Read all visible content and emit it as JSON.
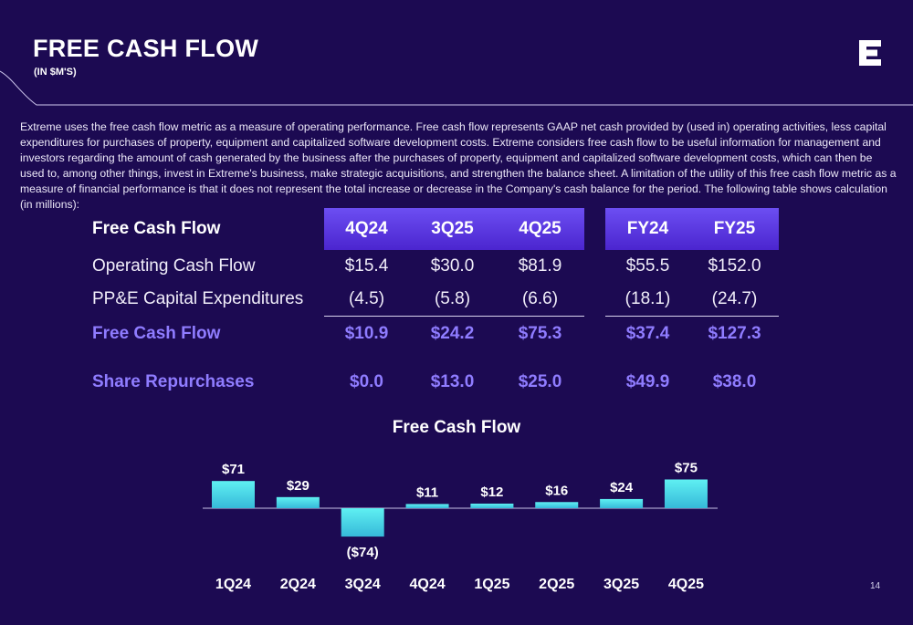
{
  "header": {
    "title": "FREE CASH FLOW",
    "subtitle": "(IN $M'S)",
    "logo_icon": "extreme-e-logo"
  },
  "description": "Extreme uses the free cash flow metric as a measure of operating performance. Free cash flow represents GAAP net cash provided by (used in) operating activities, less capital expenditures for purchases of property, equipment and capitalized software development costs.  Extreme considers free cash flow to be useful information for management and investors regarding the amount of cash generated by the business after the purchases of property, equipment and capitalized software development costs, which can then be used to, among other things, invest in Extreme's business, make strategic acquisitions, and strengthen the balance sheet. A limitation of the utility of this free cash flow metric as a measure of financial performance is that it does not represent the total increase or decrease in the Company's cash balance for the period. The following table shows calculation (in millions):",
  "table": {
    "header_label": "Free Cash Flow",
    "columns": [
      "4Q24",
      "3Q25",
      "4Q25",
      "FY24",
      "FY25"
    ],
    "rows": [
      {
        "label": "Operating Cash Flow",
        "values": [
          "$15.4",
          "$30.0",
          "$81.9",
          "$55.5",
          "$152.0"
        ]
      },
      {
        "label": "PP&E Capital Expenditures",
        "values": [
          "(4.5)",
          "(5.8)",
          "(6.6)",
          "(18.1)",
          "(24.7)"
        ]
      },
      {
        "label": "Free Cash Flow",
        "values": [
          "$10.9",
          "$24.2",
          "$75.3",
          "$37.4",
          "$127.3"
        ]
      },
      {
        "label": "Share Repurchases",
        "values": [
          "$0.0",
          "$13.0",
          "$25.0",
          "$49.9",
          "$38.0"
        ]
      }
    ]
  },
  "colors": {
    "background": "#1c0a52",
    "accent_purple": "#8f7cff",
    "bar_cyan": "#4fe3ea"
  },
  "chart_data": {
    "type": "bar",
    "title": "Free Cash Flow",
    "categories": [
      "1Q24",
      "2Q24",
      "3Q24",
      "4Q24",
      "1Q25",
      "2Q25",
      "3Q25",
      "4Q25"
    ],
    "values": [
      71,
      29,
      -74,
      11,
      12,
      16,
      24,
      75
    ],
    "data_labels": [
      "$71",
      "$29",
      "($74)",
      "$11",
      "$12",
      "$16",
      "$24",
      "$75"
    ],
    "xlabel": "",
    "ylabel": "",
    "grid": false,
    "legend": "none"
  },
  "footer": {
    "page_number": "14"
  }
}
